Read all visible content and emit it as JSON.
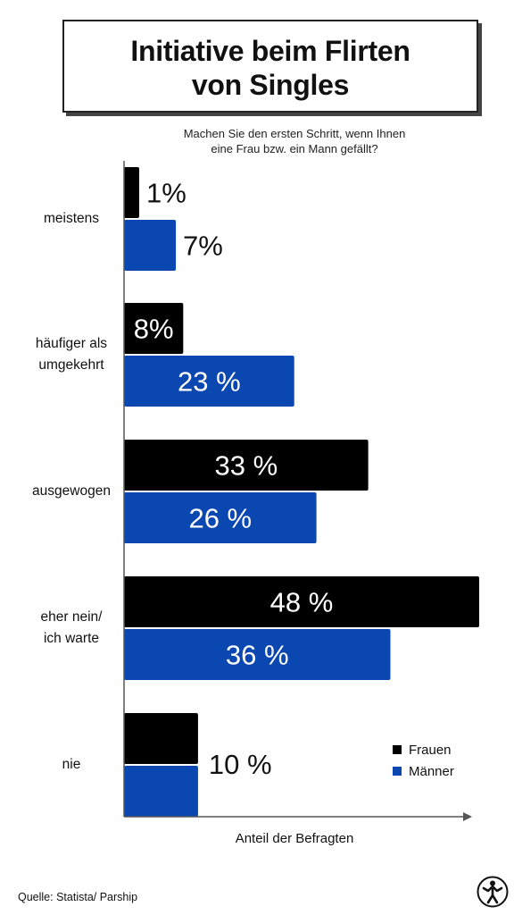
{
  "title": {
    "line1": "Initiative beim Flirten",
    "line2": "von Singles"
  },
  "subtitle": {
    "line1": "Machen Sie den ersten Schritt, wenn Ihnen",
    "line2": "eine Frau bzw. ein Mann gefällt?"
  },
  "chart_data": {
    "type": "bar",
    "orientation": "horizontal",
    "categories": [
      "meistens",
      "häufiger als umgekehrt",
      "ausgewogen",
      "eher nein/ ich warte",
      "nie"
    ],
    "category_lines": [
      [
        "meistens"
      ],
      [
        "häufiger als",
        "umgekehrt"
      ],
      [
        "ausgewogen"
      ],
      [
        "eher nein/",
        "ich warte"
      ],
      [
        "nie"
      ]
    ],
    "series": [
      {
        "name": "Frauen",
        "color": "#000000",
        "values": [
          1,
          8,
          33,
          48,
          10
        ],
        "labels": [
          "1%",
          "8%",
          "33 %",
          "48 %",
          ""
        ]
      },
      {
        "name": "Männer",
        "color": "#0a47b0",
        "values": [
          7,
          23,
          26,
          36,
          10
        ],
        "labels": [
          "7%",
          "23 %",
          "26 %",
          "36 %",
          ""
        ]
      }
    ],
    "shared_labels": [
      "",
      "",
      "",
      "",
      "10 %"
    ],
    "xlabel": "Anteil der Befragten",
    "xlim": [
      0,
      48
    ],
    "grid": false,
    "legend": "bottom-right"
  },
  "source": "Quelle: Statista/ Parship",
  "logo_icon": "runner-silhouette-icon"
}
